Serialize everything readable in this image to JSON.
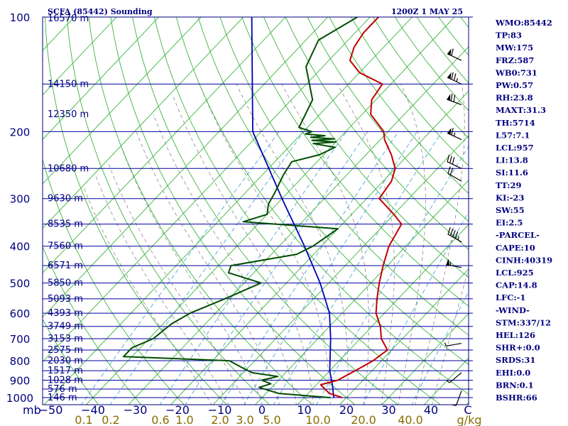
{
  "header": {
    "title": "SCFA (85442) Sounding",
    "valid_time": "1200Z  1 MAY 25"
  },
  "chart_data": {
    "type": "skew-t",
    "pressure_levels": [
      100,
      200,
      300,
      400,
      500,
      600,
      700,
      800,
      900,
      1000
    ],
    "pressure_label": "mb",
    "height_labels": [
      "16570 m",
      "14150 m",
      "12350 m",
      "10680 m",
      "9630 m",
      "8535 m",
      "7560 m",
      "6571 m",
      "5850 m",
      "5093 m",
      "4393 m",
      "3749 m",
      "3153 m",
      "2575 m",
      "2030 m",
      "1517 m",
      "1028 m",
      "576 m",
      "146 m"
    ],
    "temperature_ticks": [
      -50,
      -40,
      -30,
      -20,
      -10,
      0,
      10,
      20,
      30,
      40
    ],
    "temperature_unit": "C",
    "mixing_ratio_ticks": [
      "0.1",
      "0.2",
      "0.6",
      "1.0",
      "2.0",
      "3.0",
      "5.0",
      "10.0",
      "20.0",
      "40.0"
    ],
    "mixing_ratio_unit": "g/kg",
    "temperature_profile": [
      [
        1000,
        19
      ],
      [
        975,
        15
      ],
      [
        925,
        11
      ],
      [
        900,
        14
      ],
      [
        850,
        16
      ],
      [
        800,
        18
      ],
      [
        750,
        19
      ],
      [
        700,
        15
      ],
      [
        650,
        12
      ],
      [
        600,
        8
      ],
      [
        550,
        5
      ],
      [
        500,
        2
      ],
      [
        450,
        -1
      ],
      [
        400,
        -4
      ],
      [
        350,
        -6
      ],
      [
        330,
        -10
      ],
      [
        300,
        -17
      ],
      [
        270,
        -18
      ],
      [
        250,
        -20
      ],
      [
        230,
        -24
      ],
      [
        210,
        -29
      ],
      [
        200,
        -31
      ],
      [
        180,
        -38
      ],
      [
        165,
        -41
      ],
      [
        150,
        -42
      ],
      [
        140,
        -50
      ],
      [
        130,
        -55
      ],
      [
        120,
        -57
      ],
      [
        110,
        -58
      ],
      [
        100,
        -58
      ]
    ],
    "dewpoint_profile": [
      [
        1000,
        16
      ],
      [
        975,
        3
      ],
      [
        940,
        -3
      ],
      [
        920,
        -1
      ],
      [
        900,
        -4
      ],
      [
        880,
        -1
      ],
      [
        860,
        -8
      ],
      [
        830,
        -12
      ],
      [
        800,
        -16
      ],
      [
        780,
        -42
      ],
      [
        740,
        -42
      ],
      [
        700,
        -39
      ],
      [
        640,
        -38
      ],
      [
        600,
        -36
      ],
      [
        550,
        -31
      ],
      [
        500,
        -26
      ],
      [
        470,
        -36
      ],
      [
        450,
        -37
      ],
      [
        420,
        -24
      ],
      [
        400,
        -22
      ],
      [
        360,
        -20
      ],
      [
        345,
        -44
      ],
      [
        330,
        -40
      ],
      [
        310,
        -42
      ],
      [
        290,
        -43
      ],
      [
        260,
        -45
      ],
      [
        240,
        -46
      ],
      [
        230,
        -41
      ],
      [
        220,
        -39
      ],
      [
        215,
        -45
      ],
      [
        213,
        -40
      ],
      [
        211,
        -46
      ],
      [
        209,
        -41
      ],
      [
        207,
        -47
      ],
      [
        205,
        -44
      ],
      [
        203,
        -49
      ],
      [
        200,
        -48
      ],
      [
        195,
        -52
      ],
      [
        165,
        -55
      ],
      [
        135,
        -64
      ],
      [
        115,
        -67
      ],
      [
        100,
        -63
      ]
    ],
    "parcel_profile": [
      [
        1000,
        17
      ],
      [
        930,
        14
      ],
      [
        850,
        10
      ],
      [
        700,
        3
      ],
      [
        600,
        -3
      ],
      [
        500,
        -12
      ],
      [
        400,
        -24
      ],
      [
        300,
        -40
      ],
      [
        200,
        -62
      ],
      [
        100,
        -88
      ]
    ],
    "wind_barbs": [
      {
        "p": 130,
        "dir": 295,
        "spd": 60
      },
      {
        "p": 150,
        "dir": 295,
        "spd": 75
      },
      {
        "p": 170,
        "dir": 290,
        "spd": 70
      },
      {
        "p": 210,
        "dir": 295,
        "spd": 65
      },
      {
        "p": 250,
        "dir": 295,
        "spd": 30
      },
      {
        "p": 270,
        "dir": 300,
        "spd": 20
      },
      {
        "p": 390,
        "dir": 300,
        "spd": 45
      },
      {
        "p": 455,
        "dir": 280,
        "spd": 55
      },
      {
        "p": 720,
        "dir": 260,
        "spd": 5
      },
      {
        "p": 860,
        "dir": 230,
        "spd": 5
      },
      {
        "p": 960,
        "dir": 200,
        "spd": 5
      }
    ],
    "ylim": [
      1000,
      100
    ],
    "xlim": [
      -50,
      50
    ]
  },
  "indices": [
    "WMO:85442",
    "TP:83",
    "MW:175",
    "FRZ:587",
    "WB0:731",
    "PW:0.57",
    "RH:23.8",
    "MAXT:31.3",
    "TH:5714",
    "L57:7.1",
    "LCL:957",
    "LI:13.8",
    "SI:11.6",
    "TT:29",
    "KI:-23",
    "SW:55",
    "EI:2.5",
    "-PARCEL-",
    "CAPE:10",
    "CINH:40319",
    "LCL:925",
    "CAP:14.8",
    "LFC:-1",
    "-WIND-",
    "STM:337/12",
    "HEL:126",
    "SHR+:0.0",
    "SRDS:31",
    "EHI:0.0",
    "BRN:0.1",
    "BSHR:66"
  ],
  "colors": {
    "frame": "#000080",
    "isobar": "#0000a0",
    "isotherm": "#3cb43c",
    "dry_adiabat": "#3cb43c",
    "moist_adiabat": "#8a8a8a",
    "mixing_ratio": "#4da6d9",
    "temperature": "#c00000",
    "dewpoint": "#004d00",
    "parcel": "#0000b0",
    "mixing_label": "#8a6d00",
    "text": "#000080",
    "barb": "#000000"
  }
}
